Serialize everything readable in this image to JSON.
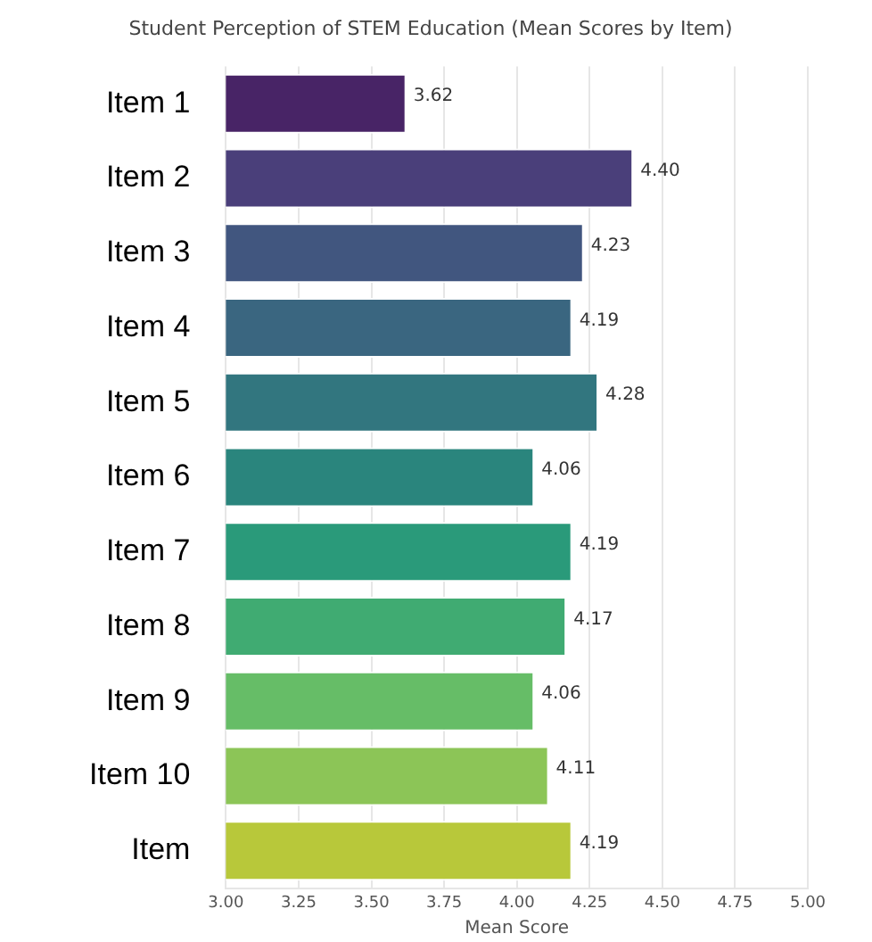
{
  "chart_data": {
    "type": "bar",
    "orientation": "horizontal",
    "title": "Student Perception of STEM Education (Mean Scores by Item)",
    "xlabel": "Mean Score",
    "categories": [
      "Item 1",
      "Item 2",
      "Item 3",
      "Item 4",
      "Item 5",
      "Item 6",
      "Item 7",
      "Item 8",
      "Item 9",
      "Item 10",
      "Item"
    ],
    "values": [
      3.62,
      4.4,
      4.23,
      4.19,
      4.28,
      4.06,
      4.19,
      4.17,
      4.06,
      4.11,
      4.19
    ],
    "colors": [
      "#482466",
      "#4a3f7a",
      "#41567f",
      "#3a6680",
      "#32767f",
      "#2a857d",
      "#2a9a7a",
      "#40ab72",
      "#66bd67",
      "#8cc557",
      "#b8c83a"
    ],
    "xlim": [
      3,
      5
    ],
    "xticks": [
      {
        "value": 3,
        "label": "3.00"
      },
      {
        "value": 3.25,
        "label": "3.25"
      },
      {
        "value": 3.5,
        "label": "3.50"
      },
      {
        "value": 3.75,
        "label": "3.75"
      },
      {
        "value": 4,
        "label": "4.00"
      },
      {
        "value": 4.25,
        "label": "4.25"
      },
      {
        "value": 4.5,
        "label": "4.50"
      },
      {
        "value": 4.75,
        "label": "4.75"
      },
      {
        "value": 5,
        "label": "5.00"
      }
    ],
    "value_labels": [
      "3.62",
      "4.40",
      "4.23",
      "4.19",
      "4.28",
      "4.06",
      "4.19",
      "4.17",
      "4.06",
      "4.11",
      "4.19"
    ],
    "grid": "x"
  }
}
